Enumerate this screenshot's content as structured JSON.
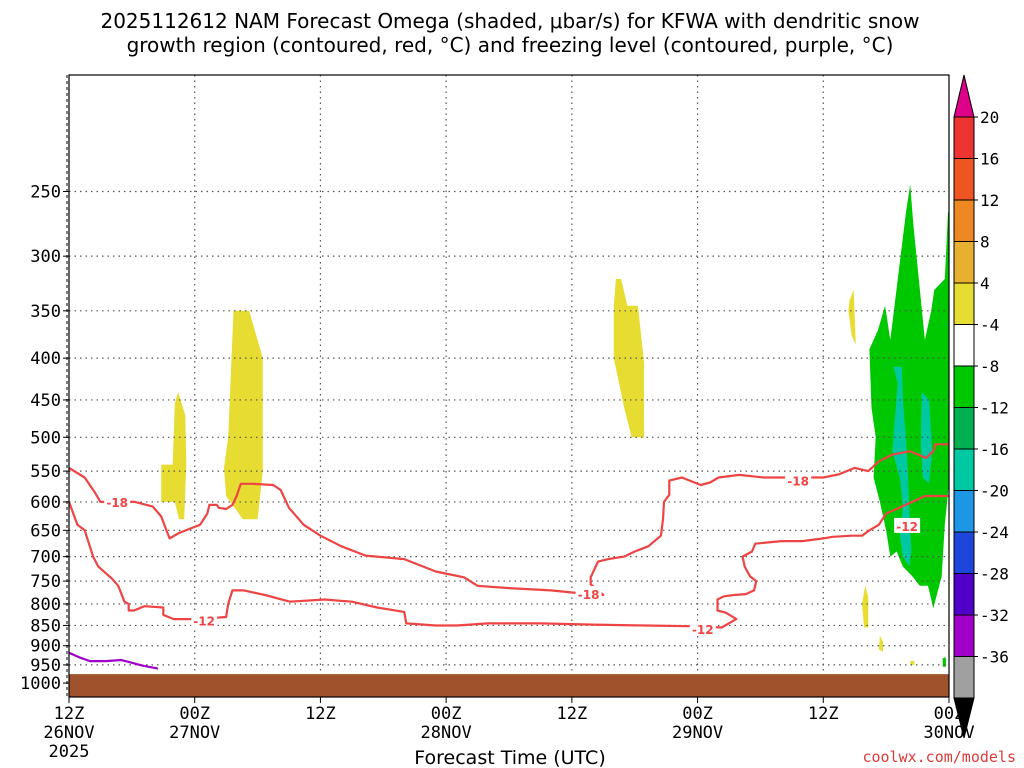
{
  "title": {
    "line1": "2025112612 NAM Forecast Omega (shaded, μbar/s) for KFWA with dendritic snow",
    "line2": "growth region (contoured, red, °C) and freezing level (contoured, purple, °C)"
  },
  "credit": "coolwx.com/models",
  "chart_data": {
    "type": "heatmap",
    "xlabel": "Forecast Time (UTC)",
    "ylabel": "",
    "x_range_hours": [
      0,
      84
    ],
    "y_range_hpa": [
      180,
      1040
    ],
    "y_scale": "log-pressure",
    "grid": true,
    "x_ticks": [
      {
        "hour": 0,
        "line1": "12Z",
        "line2": "26NOV",
        "line3": "2025"
      },
      {
        "hour": 12,
        "line1": "00Z",
        "line2": "27NOV",
        "line3": ""
      },
      {
        "hour": 24,
        "line1": "12Z",
        "line2": "",
        "line3": ""
      },
      {
        "hour": 36,
        "line1": "00Z",
        "line2": "28NOV",
        "line3": ""
      },
      {
        "hour": 48,
        "line1": "12Z",
        "line2": "",
        "line3": ""
      },
      {
        "hour": 60,
        "line1": "00Z",
        "line2": "29NOV",
        "line3": ""
      },
      {
        "hour": 72,
        "line1": "12Z",
        "line2": "",
        "line3": ""
      },
      {
        "hour": 84,
        "line1": "00Z",
        "line2": "30NOV",
        "line3": ""
      }
    ],
    "y_ticks": [
      250,
      300,
      350,
      400,
      450,
      500,
      550,
      600,
      650,
      700,
      750,
      800,
      850,
      900,
      950,
      1000
    ],
    "colorbar": {
      "levels": [
        "20",
        "16",
        "12",
        "8",
        "4",
        "-4",
        "-8",
        "-12",
        "-16",
        "-20",
        "-24",
        "-28",
        "-32",
        "-36"
      ],
      "colors": [
        "#dd0088",
        "#ee3333",
        "#ee5522",
        "#ee8822",
        "#e8b030",
        "#e6dc32",
        "#ffffff",
        "#00c800",
        "#00b050",
        "#00c8a0",
        "#1e96e6",
        "#1e46dc",
        "#5000c8",
        "#a000c8",
        "#a0a0a0",
        "#000000"
      ]
    },
    "omega_regions": [
      {
        "value": 4,
        "color": "#e6dc32",
        "points": [
          [
            8.8,
            540
          ],
          [
            9.9,
            540
          ],
          [
            10.1,
            455
          ],
          [
            10.4,
            440
          ],
          [
            11.1,
            470
          ],
          [
            11.2,
            540
          ],
          [
            11.0,
            630
          ],
          [
            10.5,
            630
          ],
          [
            10.1,
            600
          ],
          [
            8.8,
            600
          ]
        ]
      },
      {
        "value": 4,
        "color": "#e6dc32",
        "points": [
          [
            15.7,
            350
          ],
          [
            17.2,
            350
          ],
          [
            18.5,
            400
          ],
          [
            18.5,
            550
          ],
          [
            18.0,
            630
          ],
          [
            16.6,
            630
          ],
          [
            15.0,
            590
          ],
          [
            14.8,
            545
          ],
          [
            15.2,
            500
          ]
        ]
      },
      {
        "value": 4,
        "color": "#e6dc32",
        "points": [
          [
            52.2,
            320
          ],
          [
            52.7,
            320
          ],
          [
            53.3,
            345
          ],
          [
            54.3,
            345
          ],
          [
            54.9,
            405
          ],
          [
            54.9,
            500
          ],
          [
            53.7,
            500
          ],
          [
            53.0,
            460
          ],
          [
            52.0,
            400
          ],
          [
            52.0,
            345
          ]
        ]
      },
      {
        "value": 4,
        "color": "#e6dc32",
        "points": [
          [
            74.5,
            340
          ],
          [
            74.9,
            330
          ],
          [
            75.1,
            385
          ],
          [
            74.7,
            375
          ],
          [
            74.4,
            350
          ]
        ]
      },
      {
        "value": 4,
        "color": "#e6dc32",
        "points": [
          [
            76.0,
            760
          ],
          [
            76.3,
            785
          ],
          [
            76.3,
            855
          ],
          [
            75.9,
            855
          ],
          [
            75.7,
            800
          ]
        ]
      },
      {
        "value": 4,
        "color": "#e6dc32",
        "points": [
          [
            77.4,
            875
          ],
          [
            77.7,
            890
          ],
          [
            77.7,
            915
          ],
          [
            77.3,
            910
          ]
        ]
      },
      {
        "value": -4,
        "color": "#00c800",
        "points": [
          [
            76.4,
            390
          ],
          [
            77.2,
            370
          ],
          [
            77.9,
            345
          ],
          [
            78.4,
            380
          ],
          [
            79.9,
            265
          ],
          [
            80.3,
            245
          ],
          [
            80.6,
            275
          ],
          [
            81.7,
            380
          ],
          [
            82.3,
            350
          ],
          [
            82.6,
            330
          ],
          [
            83.6,
            320
          ],
          [
            83.9,
            265
          ],
          [
            84.0,
            265
          ],
          [
            84.0,
            570
          ],
          [
            83.6,
            640
          ],
          [
            83.3,
            740
          ],
          [
            82.5,
            810
          ],
          [
            82.0,
            760
          ],
          [
            81.2,
            760
          ],
          [
            80.5,
            740
          ],
          [
            79.6,
            720
          ],
          [
            79.0,
            690
          ],
          [
            78.4,
            700
          ],
          [
            78.0,
            650
          ],
          [
            77.4,
            600
          ],
          [
            76.8,
            560
          ],
          [
            77.0,
            500
          ],
          [
            76.6,
            460
          ]
        ]
      },
      {
        "value": -8,
        "color": "#00c8a0",
        "points": [
          [
            78.7,
            410
          ],
          [
            79.1,
            430
          ],
          [
            78.8,
            480
          ],
          [
            78.6,
            520
          ],
          [
            79.3,
            560
          ],
          [
            79.6,
            610
          ],
          [
            79.3,
            660
          ],
          [
            79.6,
            700
          ],
          [
            80.2,
            720
          ],
          [
            80.4,
            690
          ],
          [
            80.2,
            610
          ],
          [
            80.1,
            560
          ],
          [
            79.9,
            500
          ],
          [
            79.6,
            450
          ],
          [
            79.5,
            410
          ]
        ]
      },
      {
        "value": -8,
        "color": "#00c8a0",
        "points": [
          [
            81.4,
            440
          ],
          [
            82.1,
            450
          ],
          [
            82.4,
            520
          ],
          [
            82.1,
            570
          ],
          [
            81.5,
            560
          ],
          [
            81.3,
            510
          ]
        ]
      },
      {
        "value": -4,
        "color": "#00c800",
        "points": [
          [
            83.4,
            932
          ],
          [
            83.7,
            930
          ],
          [
            83.7,
            955
          ],
          [
            83.4,
            955
          ]
        ]
      },
      {
        "value": 4,
        "color": "#e6dc32",
        "points": [
          [
            80.3,
            940
          ],
          [
            80.7,
            940
          ],
          [
            80.7,
            950
          ],
          [
            80.3,
            950
          ]
        ]
      }
    ],
    "terrain": {
      "color": "#a0522d",
      "surface_hpa": 975
    },
    "contours": [
      {
        "name": "dgz-warm",
        "color": "#ee4444",
        "label": "-12",
        "label_points": [
          [
            12.9,
            838
          ],
          [
            60.5,
            858
          ],
          [
            80.0,
            642
          ]
        ],
        "points": [
          [
            0,
            600
          ],
          [
            0.8,
            640
          ],
          [
            1.5,
            650
          ],
          [
            2.3,
            700
          ],
          [
            2.8,
            720
          ],
          [
            4.1,
            745
          ],
          [
            4.7,
            760
          ],
          [
            5.3,
            795
          ],
          [
            5.7,
            800
          ],
          [
            5.7,
            815
          ],
          [
            6.2,
            815
          ],
          [
            7.2,
            805
          ],
          [
            9.0,
            808
          ],
          [
            9.0,
            825
          ],
          [
            10.0,
            835
          ],
          [
            12.2,
            835
          ],
          [
            15.0,
            830
          ],
          [
            15.2,
            800
          ],
          [
            15.6,
            770
          ],
          [
            16.7,
            770
          ],
          [
            18.7,
            780
          ],
          [
            21.1,
            795
          ],
          [
            24.4,
            790
          ],
          [
            27.0,
            795
          ],
          [
            29.4,
            808
          ],
          [
            32.0,
            818
          ],
          [
            32.2,
            845
          ],
          [
            35.0,
            850
          ],
          [
            37.0,
            850
          ],
          [
            40.0,
            845
          ],
          [
            45.0,
            845
          ],
          [
            50.0,
            848
          ],
          [
            55.0,
            850
          ],
          [
            60.0,
            852
          ],
          [
            62.3,
            855
          ],
          [
            63.7,
            835
          ],
          [
            62.7,
            820
          ],
          [
            61.9,
            815
          ],
          [
            61.9,
            790
          ],
          [
            62.5,
            783
          ],
          [
            63.5,
            780
          ],
          [
            64.6,
            778
          ],
          [
            65.4,
            770
          ],
          [
            65.6,
            750
          ],
          [
            65.0,
            740
          ],
          [
            64.5,
            720
          ],
          [
            64.3,
            700
          ],
          [
            65.2,
            690
          ],
          [
            65.5,
            675
          ],
          [
            68.0,
            670
          ],
          [
            70.0,
            670
          ],
          [
            72.0,
            665
          ],
          [
            72.9,
            662
          ],
          [
            74.7,
            660
          ],
          [
            75.7,
            660
          ],
          [
            76.4,
            650
          ],
          [
            77.3,
            640
          ],
          [
            78.0,
            620
          ],
          [
            80.5,
            600
          ],
          [
            81.7,
            590
          ],
          [
            83.0,
            590
          ],
          [
            84.0,
            590
          ]
        ]
      },
      {
        "name": "dgz-cold",
        "color": "#ee4444",
        "label": "-18",
        "label_points": [
          [
            4.6,
            600
          ],
          [
            49.6,
            778
          ],
          [
            69.6,
            565
          ]
        ],
        "points": [
          [
            0,
            545
          ],
          [
            1.5,
            560
          ],
          [
            2.5,
            585
          ],
          [
            3.0,
            600
          ],
          [
            4.6,
            600
          ],
          [
            6.3,
            600
          ],
          [
            8.0,
            608
          ],
          [
            8.8,
            625
          ],
          [
            9.3,
            650
          ],
          [
            9.6,
            665
          ],
          [
            10.5,
            655
          ],
          [
            12.5,
            640
          ],
          [
            13.2,
            620
          ],
          [
            13.4,
            605
          ],
          [
            14.1,
            605
          ],
          [
            14.3,
            610
          ],
          [
            15.0,
            612
          ],
          [
            15.6,
            605
          ],
          [
            16.0,
            590
          ],
          [
            16.4,
            570
          ],
          [
            17.6,
            570
          ],
          [
            19.5,
            572
          ],
          [
            20.2,
            580
          ],
          [
            21.0,
            610
          ],
          [
            22.4,
            640
          ],
          [
            24.0,
            660
          ],
          [
            26.0,
            680
          ],
          [
            28.3,
            698
          ],
          [
            32.0,
            705
          ],
          [
            35.0,
            730
          ],
          [
            37.7,
            742
          ],
          [
            39.0,
            760
          ],
          [
            42.0,
            765
          ],
          [
            46.0,
            770
          ],
          [
            49.6,
            778
          ],
          [
            51.0,
            780
          ],
          [
            50.5,
            770
          ],
          [
            49.8,
            757
          ],
          [
            49.8,
            742
          ],
          [
            50.5,
            710
          ],
          [
            51.5,
            705
          ],
          [
            53.0,
            700
          ],
          [
            54.0,
            690
          ],
          [
            55.3,
            680
          ],
          [
            56.5,
            660
          ],
          [
            56.7,
            630
          ],
          [
            56.8,
            600
          ],
          [
            57.3,
            588
          ],
          [
            57.3,
            565
          ],
          [
            58.5,
            560
          ],
          [
            60.3,
            572
          ],
          [
            61.2,
            568
          ],
          [
            62.0,
            560
          ],
          [
            64.0,
            556
          ],
          [
            66.3,
            560
          ],
          [
            68.0,
            560
          ],
          [
            70.0,
            560
          ],
          [
            71.0,
            560
          ],
          [
            72.0,
            560
          ],
          [
            73.5,
            555
          ],
          [
            75.0,
            545
          ],
          [
            76.3,
            550
          ],
          [
            77.3,
            535
          ],
          [
            78.6,
            525
          ],
          [
            80.3,
            520
          ],
          [
            81.8,
            530
          ],
          [
            82.5,
            520
          ],
          [
            82.7,
            510
          ],
          [
            84.0,
            510
          ]
        ]
      },
      {
        "name": "freezing-level",
        "color": "#a000c8",
        "label": "",
        "label_points": [],
        "points": [
          [
            0,
            918
          ],
          [
            1.0,
            930
          ],
          [
            2.0,
            940
          ],
          [
            3.5,
            940
          ],
          [
            5.0,
            937
          ],
          [
            7.0,
            952
          ],
          [
            8.5,
            960
          ]
        ]
      }
    ]
  }
}
